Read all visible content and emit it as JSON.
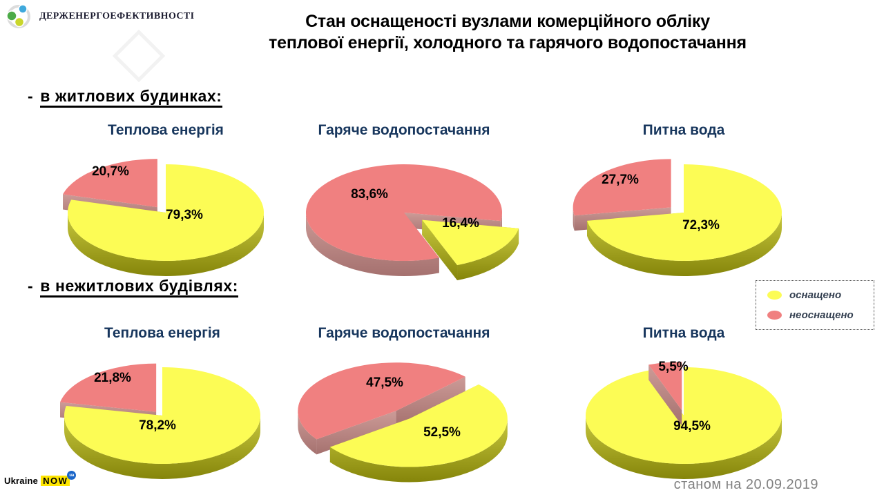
{
  "header": {
    "logo_text": "ДЕРЖЕНЕРГОЕФЕКТИВНОСТІ",
    "title_line1": "Стан оснащеності вузлами комерційного обліку",
    "title_line2": "теплової енергії, холодного та гарячого водопостачання"
  },
  "sections": [
    {
      "dash": "-",
      "label": "в житлових будинках:"
    },
    {
      "dash": "-",
      "label": "в нежитлових будівлях:"
    }
  ],
  "legend": {
    "items": [
      {
        "label": "оснащено"
      },
      {
        "label": "неоснащено"
      }
    ]
  },
  "footer": {
    "brand_word1": "Ukraine",
    "brand_word2": "NOW",
    "brand_badge": "ua",
    "date_label": "станом на 20.09.2019"
  },
  "colors": {
    "yellow": {
      "top": "#FCFC55",
      "side1": "#C8C83E",
      "side2": "#85850A"
    },
    "red": {
      "top": "#F08080",
      "side1": "#CC9B97",
      "side2": "#A5716F"
    },
    "chart_title": "#17365D",
    "legend_text": "#333F50",
    "date_text": "#808080"
  },
  "chart_data": [
    {
      "id": "c1",
      "type": "pie",
      "row": 1,
      "title": "Теплова енергія",
      "rotation": 0,
      "front": 0,
      "slices": [
        {
          "label": "оснащено",
          "value": 79.3,
          "pct": "79,3%",
          "color": "yellow",
          "explode": 0,
          "label_pos": [
            27,
            2
          ]
        },
        {
          "label": "неоснащено",
          "value": 20.7,
          "pct": "20,7%",
          "color": "red",
          "explode": 20,
          "label_pos": [
            -80,
            -61
          ]
        }
      ]
    },
    {
      "id": "c2",
      "type": "pie",
      "row": 1,
      "title": "Гаряче водопостачання",
      "rotation": 100,
      "front": 0,
      "slices": [
        {
          "label": "оснащено",
          "value": 16.4,
          "pct": "16,4%",
          "color": "yellow",
          "explode": 34,
          "label_pos": [
            82,
            14
          ]
        },
        {
          "label": "неоснащено",
          "value": 83.6,
          "pct": "83,6%",
          "color": "red",
          "explode": 0,
          "label_pos": [
            -50,
            -28
          ]
        }
      ]
    },
    {
      "id": "c3",
      "type": "pie",
      "row": 1,
      "title": "Питна вода",
      "rotation": 0,
      "front": 0,
      "slices": [
        {
          "label": "оснащено",
          "value": 72.3,
          "pct": "72,3%",
          "color": "yellow",
          "explode": 0,
          "label_pos": [
            25,
            17
          ]
        },
        {
          "label": "неоснащено",
          "value": 27.7,
          "pct": "27,7%",
          "color": "red",
          "explode": 24,
          "label_pos": [
            -92,
            -49
          ]
        }
      ]
    },
    {
      "id": "c4",
      "type": "pie",
      "row": 2,
      "title": "Теплова енергія",
      "rotation": 0,
      "front": 0,
      "slices": [
        {
          "label": "оснащено",
          "value": 78.2,
          "pct": "78,2%",
          "color": "yellow",
          "explode": 0,
          "label_pos": [
            -7,
            13
          ]
        },
        {
          "label": "неоснащено",
          "value": 21.8,
          "pct": "21,8%",
          "color": "red",
          "explode": 14,
          "label_pos": [
            -72,
            -56
          ]
        }
      ]
    },
    {
      "id": "c5",
      "type": "pie",
      "row": 2,
      "title": "Гаряче водопостачання",
      "rotation": 45,
      "front": 0,
      "slices": [
        {
          "label": "оснащено",
          "value": 52.5,
          "pct": "52,5%",
          "color": "yellow",
          "explode": 12,
          "label_pos": [
            55,
            23
          ]
        },
        {
          "label": "неоснащено",
          "value": 47.5,
          "pct": "47,5%",
          "color": "red",
          "explode": 18,
          "label_pos": [
            -28,
            -49
          ]
        }
      ]
    },
    {
      "id": "c6",
      "type": "pie",
      "row": 2,
      "title": "Питна вода",
      "rotation": 0,
      "front": 1,
      "slices": [
        {
          "label": "оснащено",
          "value": 94.5,
          "pct": "94,5%",
          "color": "yellow",
          "explode": 0,
          "label_pos": [
            12,
            14
          ]
        },
        {
          "label": "неоснащено",
          "value": 5.5,
          "pct": "5,5%",
          "color": "red",
          "explode": 16,
          "label_pos": [
            -15,
            -72
          ]
        }
      ]
    }
  ]
}
